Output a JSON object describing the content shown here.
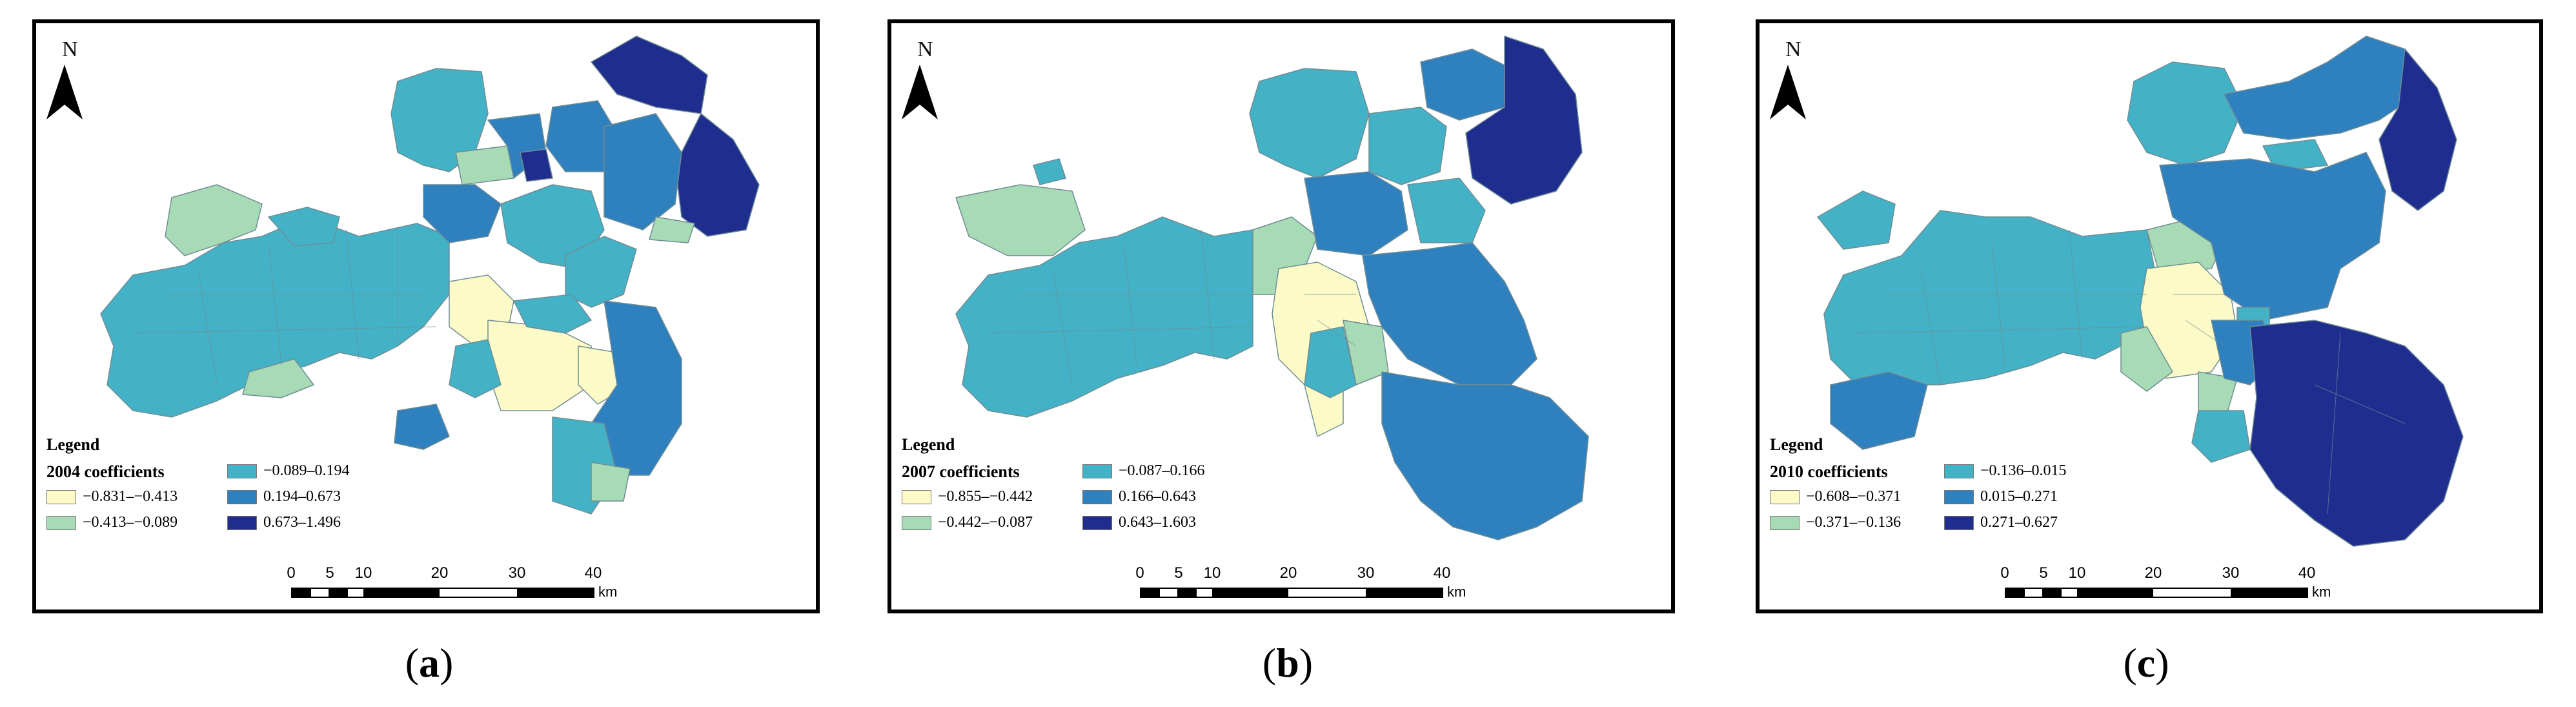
{
  "panels": [
    {
      "caption_open": "(",
      "caption_letter": "a",
      "caption_close": ")",
      "north_label": "N",
      "legend_title": "Legend",
      "legend_subtitle": "2004 coefficients",
      "classes": [
        {
          "range": "−0.831–−0.413",
          "color": "#fcfbc7"
        },
        {
          "range": "−0.413–−0.089",
          "color": "#a7dbb6"
        },
        {
          "range": "−0.089–0.194",
          "color": "#43b2c6"
        },
        {
          "range": "0.194–0.673",
          "color": "#2f80be"
        },
        {
          "range": "0.673–1.496",
          "color": "#1f2d8f"
        }
      ],
      "scale_ticks": [
        "0",
        "5",
        "10",
        "20",
        "30",
        "40"
      ],
      "scale_unit": "km"
    },
    {
      "caption_open": "(",
      "caption_letter": "b",
      "caption_close": ")",
      "north_label": "N",
      "legend_title": "Legend",
      "legend_subtitle": "2007 coefficients",
      "classes": [
        {
          "range": "−0.855–−0.442",
          "color": "#fcfbc7"
        },
        {
          "range": "−0.442–−0.087",
          "color": "#a7dbb6"
        },
        {
          "range": "−0.087–0.166",
          "color": "#43b2c6"
        },
        {
          "range": "0.166–0.643",
          "color": "#2f80be"
        },
        {
          "range": "0.643–1.603",
          "color": "#1f2d8f"
        }
      ],
      "scale_ticks": [
        "0",
        "5",
        "10",
        "20",
        "30",
        "40"
      ],
      "scale_unit": "km"
    },
    {
      "caption_open": "(",
      "caption_letter": "c",
      "caption_close": ")",
      "north_label": "N",
      "legend_title": "Legend",
      "legend_subtitle": "2010 coefficients",
      "classes": [
        {
          "range": "−0.608–−0.371",
          "color": "#fcfbc7"
        },
        {
          "range": "−0.371–−0.136",
          "color": "#a7dbb6"
        },
        {
          "range": "−0.136–0.015",
          "color": "#43b2c6"
        },
        {
          "range": "0.015–0.271",
          "color": "#2f80be"
        },
        {
          "range": "0.271–0.627",
          "color": "#1f2d8f"
        }
      ],
      "scale_ticks": [
        "0",
        "5",
        "10",
        "20",
        "30",
        "40"
      ],
      "scale_unit": "km"
    }
  ]
}
